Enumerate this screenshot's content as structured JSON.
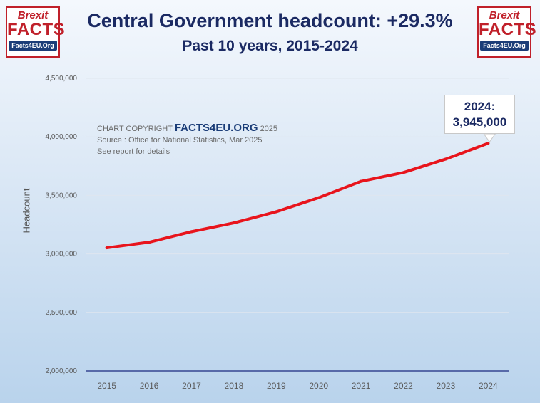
{
  "logo": {
    "line1": "Brexit",
    "line2": "FACTS",
    "line3": "Facts4EU.Org"
  },
  "header": {
    "title": "Central Government headcount: +29.3%",
    "subtitle": "Past 10 years, 2015-2024"
  },
  "copyright": {
    "prefix": "CHART COPYRIGHT",
    "brand": "FACTS4EU.ORG",
    "year": "2025",
    "source": "Source : Office for National Statistics, Mar 2025",
    "note": "See report for details"
  },
  "callout": {
    "label": "2024:",
    "value": "3,945,000"
  },
  "colors": {
    "line": "#e8141c",
    "title": "#1b2a63",
    "brand_red": "#c0202a"
  },
  "chart_data": {
    "type": "line",
    "title": "Central Government headcount: +29.3%",
    "subtitle": "Past 10 years, 2015-2024",
    "xlabel": "",
    "ylabel": "Headcount",
    "ylim": [
      2000000,
      4500000
    ],
    "yticks": [
      2000000,
      2500000,
      3000000,
      3500000,
      4000000,
      4500000
    ],
    "ytick_labels": [
      "2,000,000",
      "2,500,000",
      "3,000,000",
      "3,500,000",
      "4,000,000",
      "4,500,000"
    ],
    "categories": [
      "2015",
      "2016",
      "2017",
      "2018",
      "2019",
      "2020",
      "2021",
      "2022",
      "2023",
      "2024"
    ],
    "series": [
      {
        "name": "Central Government headcount",
        "values": [
          3052000,
          3100000,
          3190000,
          3265000,
          3360000,
          3480000,
          3620000,
          3695000,
          3810000,
          3945000
        ]
      }
    ],
    "gridlines": true,
    "annotations": [
      {
        "x": "2024",
        "text": "2024: 3,945,000"
      }
    ]
  }
}
